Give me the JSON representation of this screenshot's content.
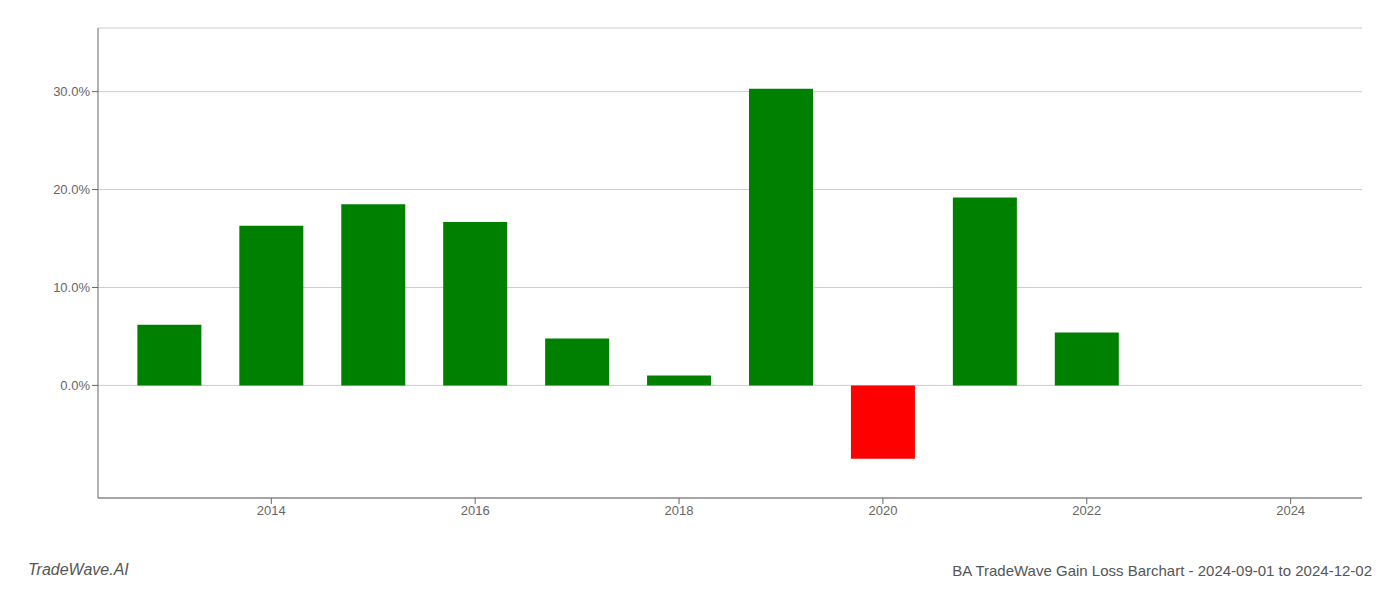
{
  "chart_data": {
    "type": "bar",
    "title": "BA TradeWave Gain Loss Barchart - 2024-09-01 to 2024-12-02",
    "annotations": [
      "TradeWave.AI"
    ],
    "x": [
      2013,
      2014,
      2015,
      2016,
      2017,
      2018,
      2019,
      2020,
      2021,
      2022
    ],
    "values": [
      0.062,
      0.163,
      0.185,
      0.167,
      0.048,
      0.01,
      0.303,
      -0.075,
      0.192,
      0.054
    ],
    "colors": [
      "#008000",
      "#008000",
      "#008000",
      "#008000",
      "#008000",
      "#008000",
      "#008000",
      "#ff0000",
      "#008000",
      "#008000"
    ],
    "xlim": [
      2012.3,
      2024.7
    ],
    "xticks": [
      2014,
      2016,
      2018,
      2020,
      2022,
      2024
    ],
    "ylim": [
      -0.115,
      0.365
    ],
    "yticks": [
      {
        "value": 0.0,
        "label": "0.0%"
      },
      {
        "value": 0.1,
        "label": "10.0%"
      },
      {
        "value": 0.2,
        "label": "20.0%"
      },
      {
        "value": 0.3,
        "label": "30.0%"
      }
    ],
    "grid": true
  }
}
